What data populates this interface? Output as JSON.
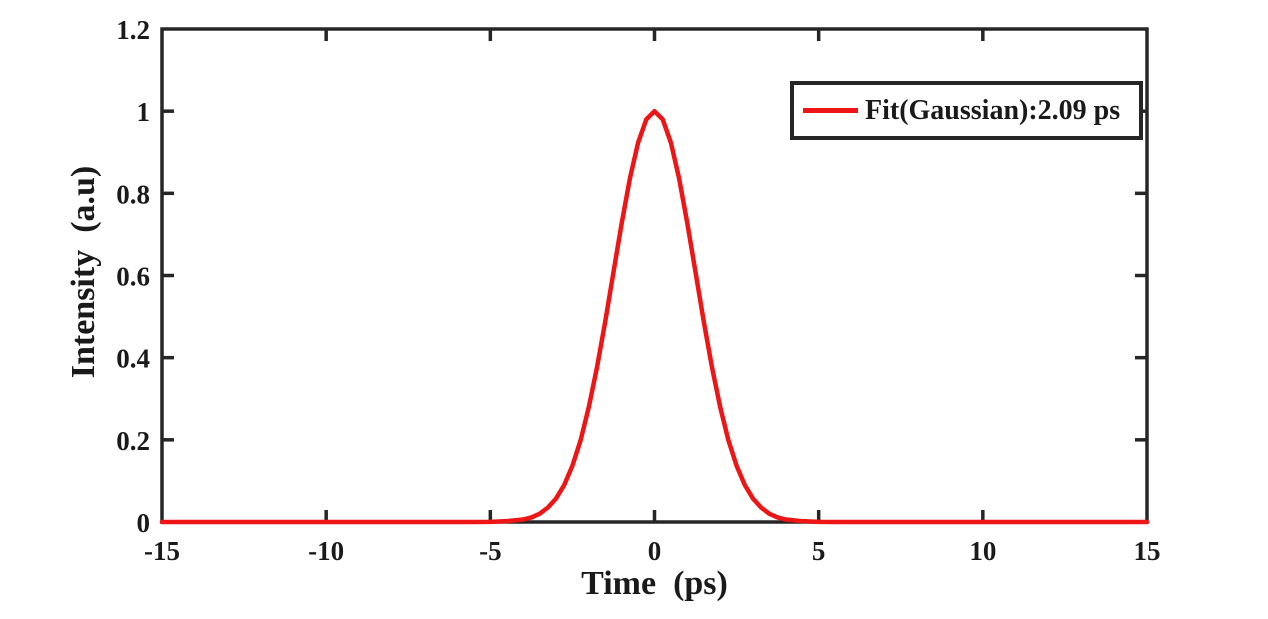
{
  "figure": {
    "background": "#ffffff",
    "colors": {
      "line": "#ed1515",
      "axis": "#262626",
      "text": "#1a1a1a",
      "background": "#ffffff"
    }
  },
  "chart_data": {
    "type": "line",
    "title": "",
    "xlabel": "Time  (ps)",
    "ylabel": "Intensity  (a.u)",
    "xlim": [
      -15,
      15
    ],
    "ylim": [
      0,
      1.2
    ],
    "xticks": [
      -15,
      -10,
      -5,
      0,
      5,
      10,
      15
    ],
    "xtick_labels": [
      "-15",
      "-10",
      "-5",
      "0",
      "5",
      "10",
      "15"
    ],
    "yticks": [
      0,
      0.2,
      0.4,
      0.6,
      0.8,
      1,
      1.2
    ],
    "ytick_labels": [
      "0",
      "0.2",
      "0.4",
      "0.6",
      "0.8",
      "1",
      "1.2"
    ],
    "grid": false,
    "box": true,
    "tick_direction": "in",
    "legend": {
      "position": "top-right",
      "border": true,
      "entries": [
        {
          "label": "Fit(Gaussian):2.09 ps",
          "color": "#ed1515"
        }
      ]
    },
    "series": [
      {
        "name": "Fit(Gaussian):2.09 ps",
        "type": "line",
        "color": "#ed1515",
        "shape": "gaussian",
        "center_ps": 0,
        "peak_intensity": 1.0,
        "fit_width_label_ps": 2.09,
        "plotted_fwhm_ps": 2.95,
        "x": [
          -15,
          -6,
          -5.5,
          -5,
          -4.5,
          -4,
          -3.75,
          -3.5,
          -3.25,
          -3,
          -2.75,
          -2.5,
          -2.25,
          -2,
          -1.75,
          -1.5,
          -1.25,
          -1,
          -0.75,
          -0.5,
          -0.25,
          0,
          0.25,
          0.5,
          0.75,
          1,
          1.25,
          1.5,
          1.75,
          2,
          2.25,
          2.5,
          2.75,
          3,
          3.25,
          3.5,
          3.75,
          4,
          4.5,
          5,
          5.5,
          6,
          15
        ],
        "y": [
          0,
          0,
          0.0001,
          0.0004,
          0.002,
          0.006,
          0.011,
          0.02,
          0.035,
          0.057,
          0.09,
          0.137,
          0.199,
          0.28,
          0.377,
          0.488,
          0.608,
          0.727,
          0.836,
          0.923,
          0.98,
          1,
          0.98,
          0.923,
          0.836,
          0.727,
          0.608,
          0.488,
          0.377,
          0.28,
          0.199,
          0.137,
          0.09,
          0.057,
          0.035,
          0.02,
          0.011,
          0.006,
          0.002,
          0.0004,
          0.0001,
          0,
          0
        ]
      }
    ]
  }
}
